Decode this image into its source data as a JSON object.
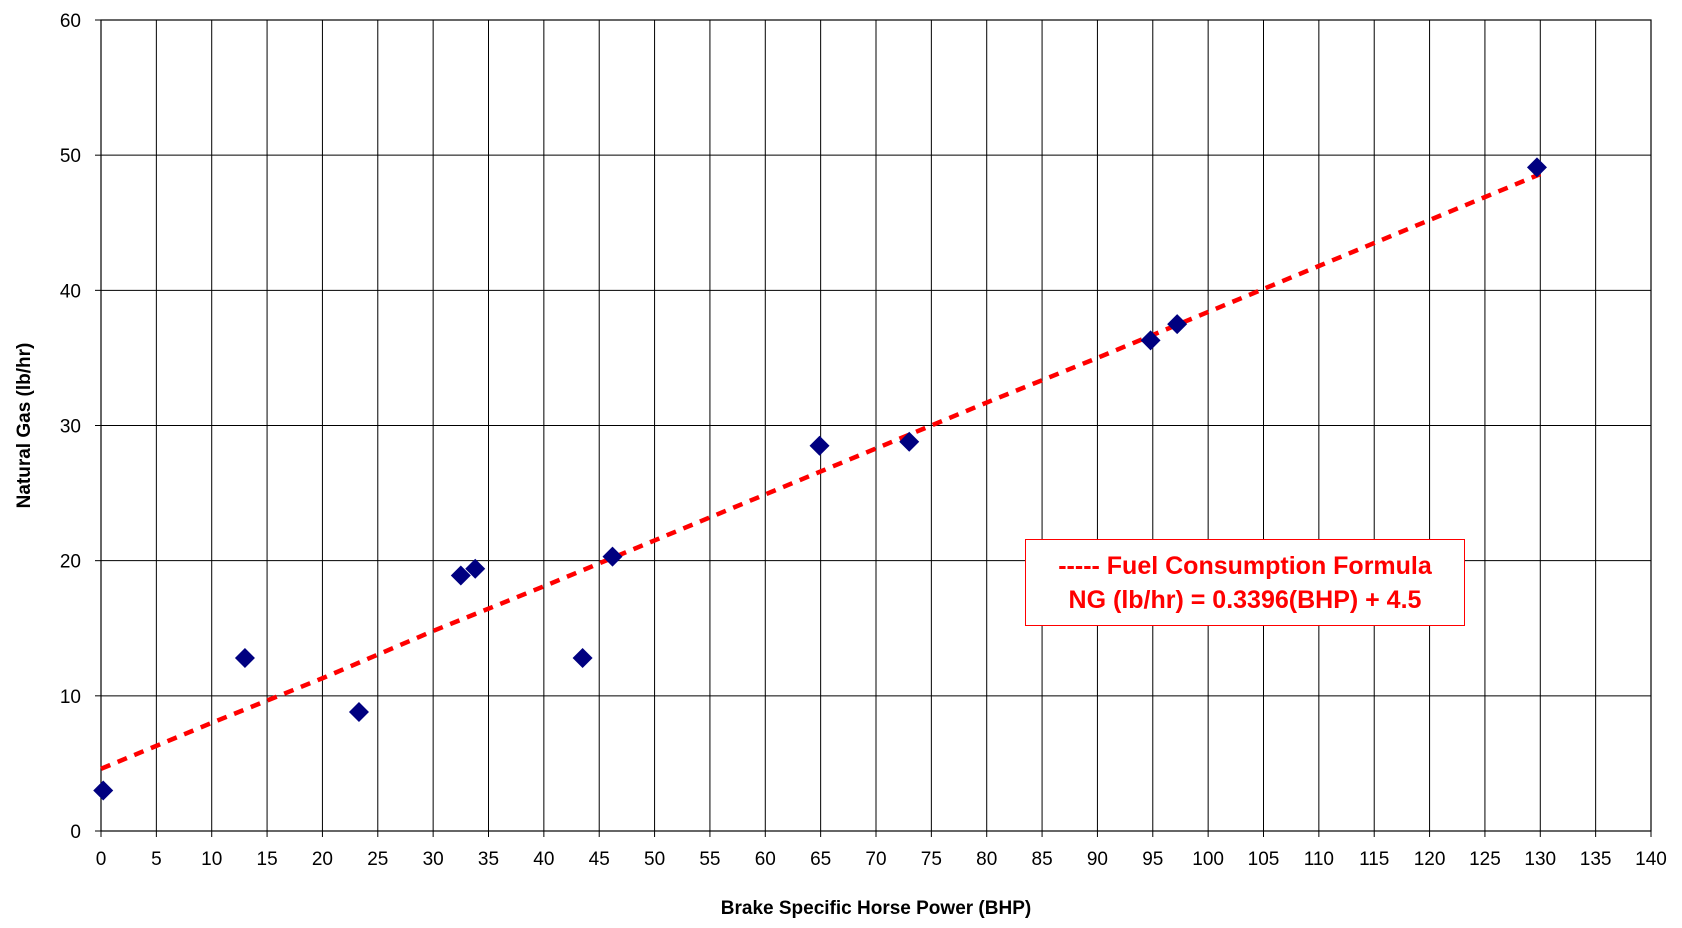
{
  "chart_data": {
    "type": "scatter",
    "title": "",
    "xlabel": "Brake Specific Horse Power (BHP)",
    "ylabel": "Natural Gas (lb/hr)",
    "xlim": [
      0,
      140
    ],
    "ylim": [
      0,
      60
    ],
    "xticks": [
      "0",
      "5",
      "10",
      "15",
      "20",
      "25",
      "30",
      "35",
      "40",
      "45",
      "50",
      "55",
      "60",
      "65",
      "70",
      "75",
      "80",
      "85",
      "90",
      "95",
      "100",
      "105",
      "110",
      "115",
      "120",
      "125",
      "130",
      "135",
      "140"
    ],
    "yticks": [
      "0",
      "10",
      "20",
      "30",
      "40",
      "50",
      "60"
    ],
    "grid": true,
    "series": [
      {
        "kind": "scatter",
        "marker": "diamond",
        "color": "#000080",
        "points": [
          {
            "x": 0.2,
            "y": 3.0
          },
          {
            "x": 13.0,
            "y": 12.8
          },
          {
            "x": 23.3,
            "y": 8.8
          },
          {
            "x": 32.5,
            "y": 18.9
          },
          {
            "x": 33.8,
            "y": 19.4
          },
          {
            "x": 43.5,
            "y": 12.8
          },
          {
            "x": 46.2,
            "y": 20.3
          },
          {
            "x": 64.9,
            "y": 28.5
          },
          {
            "x": 73.0,
            "y": 28.8
          },
          {
            "x": 94.8,
            "y": 36.3
          },
          {
            "x": 97.2,
            "y": 37.5
          },
          {
            "x": 129.7,
            "y": 49.1
          }
        ]
      },
      {
        "kind": "line",
        "style": "dashed",
        "color": "#ff0000",
        "points": [
          {
            "x": 0,
            "y": 4.6
          },
          {
            "x": 10,
            "y": 8.0
          },
          {
            "x": 20,
            "y": 11.3
          },
          {
            "x": 30,
            "y": 14.8
          },
          {
            "x": 40,
            "y": 18.1
          },
          {
            "x": 50,
            "y": 21.5
          },
          {
            "x": 60,
            "y": 24.9
          },
          {
            "x": 70,
            "y": 28.3
          },
          {
            "x": 80,
            "y": 31.7
          },
          {
            "x": 90,
            "y": 35.0
          },
          {
            "x": 100,
            "y": 38.4
          },
          {
            "x": 110,
            "y": 41.8
          },
          {
            "x": 120,
            "y": 45.2
          },
          {
            "x": 130,
            "y": 48.6
          }
        ]
      }
    ],
    "annotation": {
      "line1": "----- Fuel Consumption Formula",
      "line2": "NG (lb/hr) = 0.3396(BHP) + 4.5",
      "color": "#ff0000"
    }
  }
}
